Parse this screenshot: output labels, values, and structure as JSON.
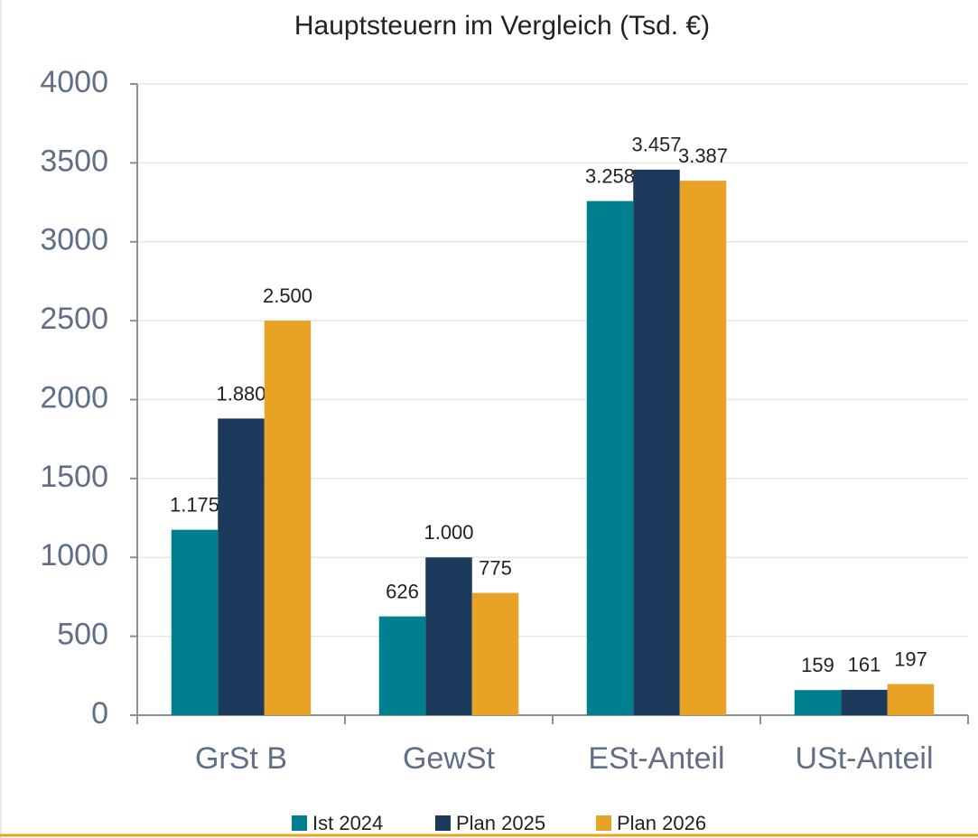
{
  "chart_data": {
    "type": "bar",
    "title": "Hauptsteuern im Vergleich (Tsd. €)",
    "categories": [
      "GrSt B",
      "GewSt",
      "ESt-Anteil",
      "USt-Anteil"
    ],
    "series": [
      {
        "name": "Ist 2024",
        "color": "#00808f",
        "values": [
          1175,
          626,
          3258,
          159
        ],
        "value_labels": [
          "1.175",
          "626",
          "3.258",
          "159"
        ]
      },
      {
        "name": "Plan 2025",
        "color": "#1b3a5c",
        "values": [
          1880,
          1000,
          3457,
          161
        ],
        "value_labels": [
          "1.880",
          "1.000",
          "3.457",
          "161"
        ]
      },
      {
        "name": "Plan 2026",
        "color": "#e8a225",
        "values": [
          2500,
          775,
          3387,
          197
        ],
        "value_labels": [
          "2.500",
          "775",
          "3.387",
          "197"
        ]
      }
    ],
    "ylim": [
      0,
      4000
    ],
    "yticks": [
      0,
      500,
      1000,
      1500,
      2000,
      2500,
      3000,
      3500,
      4000
    ],
    "grid": true,
    "legend": "bottom"
  }
}
